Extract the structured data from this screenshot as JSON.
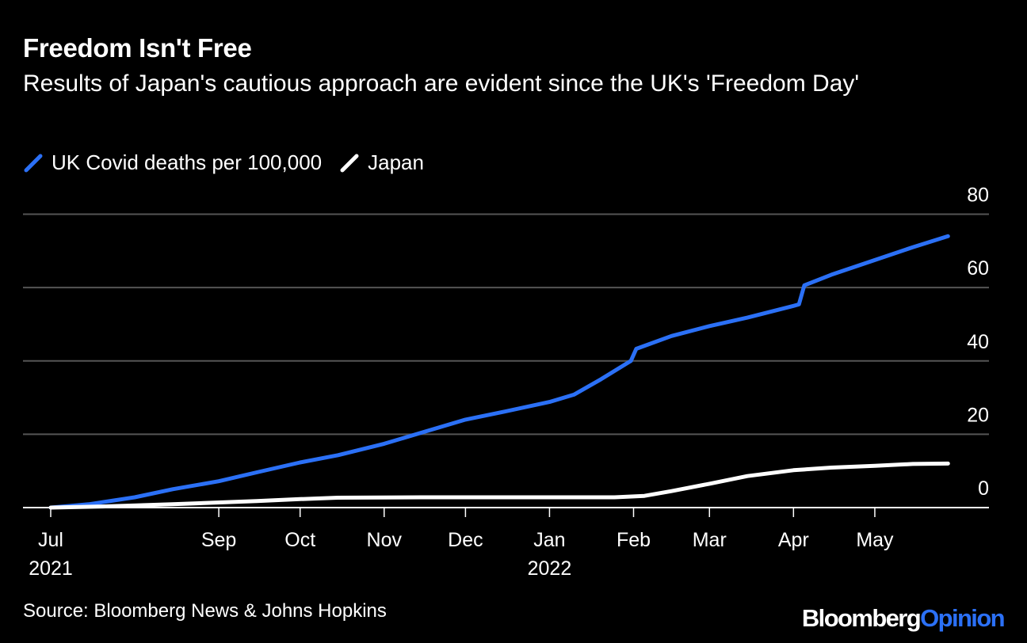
{
  "chart_data": {
    "type": "line",
    "title": "Freedom Isn't Free",
    "subtitle": "Results of Japan's cautious approach are evident since the UK's 'Freedom Day'",
    "x_range": [
      "2021-07-01",
      "2022-06-01"
    ],
    "ylim": [
      0,
      80
    ],
    "y_ticks": [
      80,
      60,
      40,
      20,
      0
    ],
    "y_axis_side": "right",
    "grid": true,
    "legend_placement": "top-left",
    "x_ticks": [
      {
        "date": "2021-07-01",
        "label": "Jul",
        "year": "2021"
      },
      {
        "date": "2021-09-01",
        "label": "Sep",
        "year": ""
      },
      {
        "date": "2021-10-01",
        "label": "Oct",
        "year": ""
      },
      {
        "date": "2021-11-01",
        "label": "Nov",
        "year": ""
      },
      {
        "date": "2021-12-01",
        "label": "Dec",
        "year": ""
      },
      {
        "date": "2022-01-01",
        "label": "Jan",
        "year": "2022"
      },
      {
        "date": "2022-02-01",
        "label": "Feb",
        "year": ""
      },
      {
        "date": "2022-03-01",
        "label": "Mar",
        "year": ""
      },
      {
        "date": "2022-04-01",
        "label": "Apr",
        "year": ""
      },
      {
        "date": "2022-05-01",
        "label": "May",
        "year": ""
      }
    ],
    "series": [
      {
        "name": "UK Covid deaths per 100,000",
        "color": "#2b70f6",
        "points": [
          [
            "2021-07-01",
            0
          ],
          [
            "2021-07-15",
            0.9
          ],
          [
            "2021-08-01",
            2.8
          ],
          [
            "2021-08-15",
            5.0
          ],
          [
            "2021-09-01",
            7.2
          ],
          [
            "2021-09-15",
            9.6
          ],
          [
            "2021-10-01",
            12.3
          ],
          [
            "2021-10-15",
            14.3
          ],
          [
            "2021-11-01",
            17.4
          ],
          [
            "2021-11-15",
            20.5
          ],
          [
            "2021-12-01",
            24.0
          ],
          [
            "2021-12-15",
            26.1
          ],
          [
            "2022-01-01",
            28.8
          ],
          [
            "2022-01-10",
            30.8
          ],
          [
            "2022-01-20",
            35.0
          ],
          [
            "2022-01-31",
            40.0
          ],
          [
            "2022-02-02",
            43.3
          ],
          [
            "2022-02-15",
            46.8
          ],
          [
            "2022-03-01",
            49.5
          ],
          [
            "2022-03-15",
            51.8
          ],
          [
            "2022-04-01",
            55.0
          ],
          [
            "2022-04-03",
            55.4
          ],
          [
            "2022-04-05",
            60.6
          ],
          [
            "2022-04-15",
            63.5
          ],
          [
            "2022-05-01",
            67.5
          ],
          [
            "2022-05-15",
            71.0
          ],
          [
            "2022-05-28",
            74.0
          ]
        ]
      },
      {
        "name": "Japan",
        "color": "#ffffff",
        "points": [
          [
            "2021-07-01",
            0
          ],
          [
            "2021-07-20",
            0.3
          ],
          [
            "2021-08-15",
            0.9
          ],
          [
            "2021-09-15",
            1.8
          ],
          [
            "2021-10-01",
            2.3
          ],
          [
            "2021-10-15",
            2.7
          ],
          [
            "2021-11-15",
            2.8
          ],
          [
            "2021-12-15",
            2.8
          ],
          [
            "2022-01-25",
            2.8
          ],
          [
            "2022-02-05",
            3.2
          ],
          [
            "2022-02-15",
            4.5
          ],
          [
            "2022-03-01",
            6.5
          ],
          [
            "2022-03-15",
            8.6
          ],
          [
            "2022-04-01",
            10.2
          ],
          [
            "2022-04-15",
            10.9
          ],
          [
            "2022-05-01",
            11.4
          ],
          [
            "2022-05-15",
            11.9
          ],
          [
            "2022-05-28",
            12.0
          ]
        ]
      }
    ]
  },
  "footer": {
    "source": "Source: Bloomberg News & Johns Hopkins",
    "brand_primary": "Bloomberg",
    "brand_secondary": "Opinion"
  }
}
